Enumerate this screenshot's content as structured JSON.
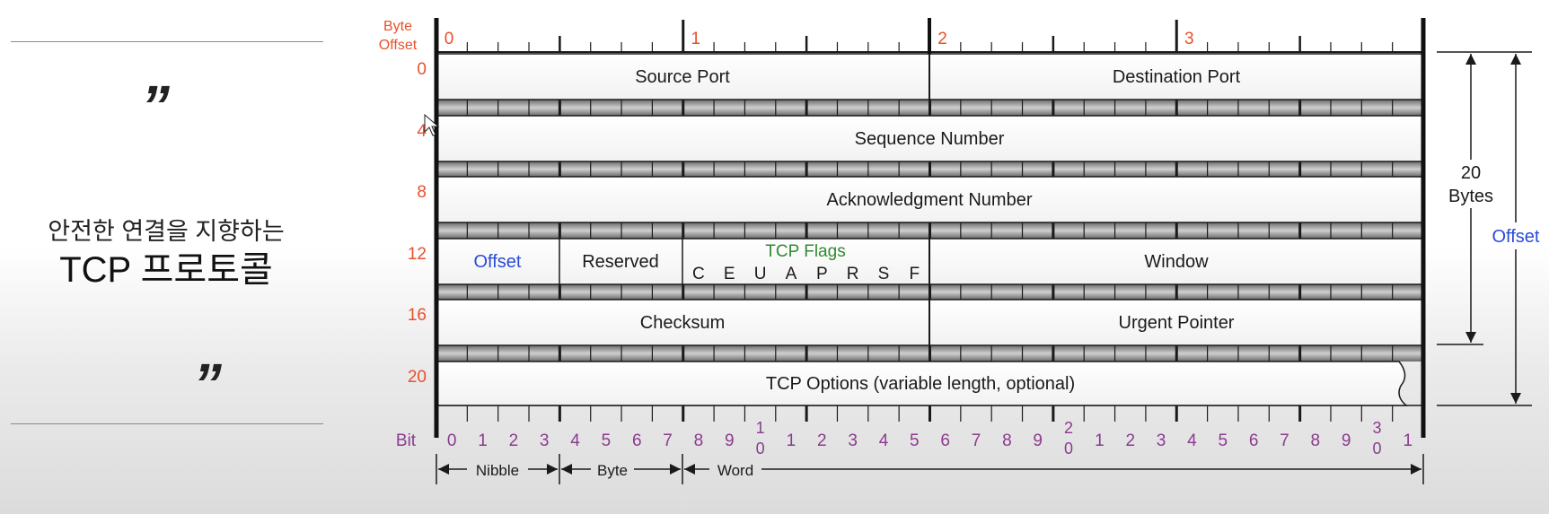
{
  "slide": {
    "open_quote": "”",
    "close_quote": "”",
    "subtitle": "안전한 연결을 지향하는",
    "title": "TCP 프로토콜"
  },
  "diagram": {
    "byte_offset_label_1": "Byte",
    "byte_offset_label_2": "Offset",
    "word_numbers": [
      "0",
      "1",
      "2",
      "3"
    ],
    "row_offsets": [
      "0",
      "4",
      "8",
      "12",
      "16",
      "20"
    ],
    "fields": {
      "source_port": "Source Port",
      "destination_port": "Destination Port",
      "sequence_number": "Sequence Number",
      "acknowledgment_number": "Acknowledgment Number",
      "offset": "Offset",
      "reserved": "Reserved",
      "tcp_flags": "TCP Flags",
      "flag_letters": [
        "C",
        "E",
        "U",
        "A",
        "P",
        "R",
        "S",
        "F"
      ],
      "window": "Window",
      "checksum": "Checksum",
      "urgent_pointer": "Urgent Pointer",
      "tcp_options": "TCP Options (variable length, optional)"
    },
    "bit_label": "Bit",
    "bit_numbers": [
      "0",
      "1",
      "2",
      "3",
      "4",
      "5",
      "6",
      "7",
      "8",
      "9",
      "1|0",
      "1",
      "2",
      "3",
      "4",
      "5",
      "6",
      "7",
      "8",
      "9",
      "2|0",
      "1",
      "2",
      "3",
      "4",
      "5",
      "6",
      "7",
      "8",
      "9",
      "3|0",
      "1"
    ],
    "scale_labels": {
      "nibble": "Nibble",
      "byte": "Byte",
      "word": "Word"
    },
    "right_labels": {
      "bytes_num": "20",
      "bytes_word": "Bytes",
      "offset": "Offset"
    },
    "colors": {
      "offset_numbers": "#e8502a",
      "bit_numbers": "#8b3b8f",
      "offset_field": "#2a4bd6",
      "flags": "#2e8b2e",
      "ink": "#1a1a1a"
    }
  }
}
